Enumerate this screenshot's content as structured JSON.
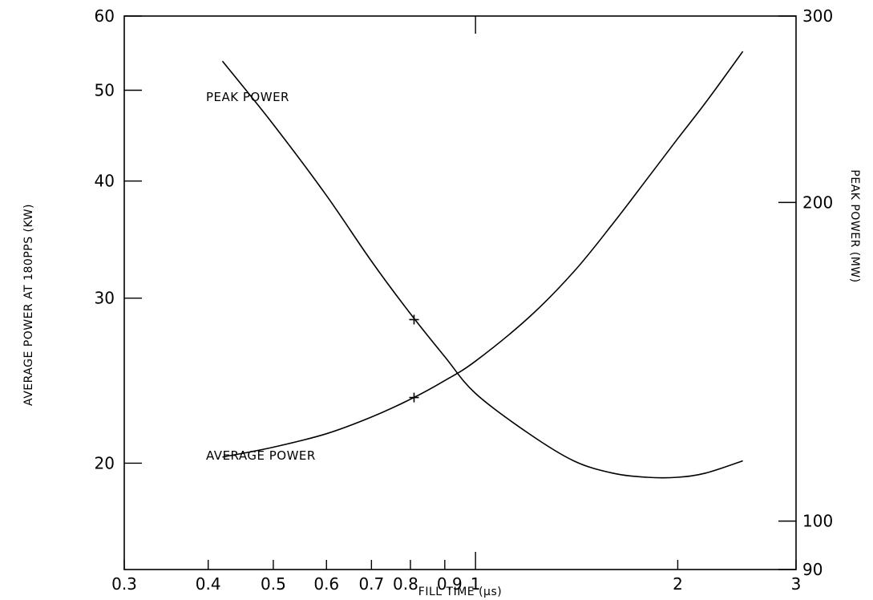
{
  "chart_data": {
    "type": "line",
    "xlabel": "FILL TIME (μs)",
    "ylabel_left": "AVERAGE POWER AT 180PPS (KW)",
    "ylabel_right": "PEAK POWER (MW)",
    "x_scale": "log",
    "y_scale": "log",
    "xlim": [
      0.3,
      3
    ],
    "ylim_left": [
      15.4,
      60
    ],
    "ylim_right": [
      90,
      300
    ],
    "x_ticks": [
      {
        "value": 0.3,
        "label": "0.3"
      },
      {
        "value": 0.4,
        "label": "0.4"
      },
      {
        "value": 0.5,
        "label": "0.5"
      },
      {
        "value": 0.6,
        "label": "0.6"
      },
      {
        "value": 0.7,
        "label": "0.7"
      },
      {
        "value": 0.8,
        "label": "0.8"
      },
      {
        "value": 0.9,
        "label": "0.9"
      },
      {
        "value": 1,
        "label": "1"
      },
      {
        "value": 2,
        "label": "2"
      },
      {
        "value": 3,
        "label": "3"
      }
    ],
    "y_left_ticks": [
      {
        "value": 20,
        "label": "20"
      },
      {
        "value": 30,
        "label": "30"
      },
      {
        "value": 40,
        "label": "40"
      },
      {
        "value": 50,
        "label": "50"
      },
      {
        "value": 60,
        "label": "60"
      }
    ],
    "y_right_ticks": [
      {
        "value": 90,
        "label": "90"
      },
      {
        "value": 100,
        "label": "100"
      },
      {
        "value": 200,
        "label": "200"
      },
      {
        "value": 300,
        "label": "300"
      }
    ],
    "grid": false,
    "series": [
      {
        "name": "PEAK POWER",
        "axis": "right",
        "x": [
          0.42,
          0.5,
          0.6,
          0.7,
          0.8,
          0.9,
          1.0,
          1.2,
          1.4,
          1.6,
          1.8,
          2.0,
          2.2,
          2.5
        ],
        "y": [
          272,
          237,
          203,
          176,
          157,
          143,
          132,
          121,
          114,
          111,
          110,
          110,
          111,
          114
        ]
      },
      {
        "name": "AVERAGE POWER",
        "axis": "left",
        "x": [
          0.42,
          0.5,
          0.6,
          0.7,
          0.8,
          0.9,
          1.0,
          1.2,
          1.4,
          1.6,
          1.8,
          2.0,
          2.2,
          2.5
        ],
        "y": [
          20.3,
          20.8,
          21.5,
          22.4,
          23.4,
          24.5,
          25.7,
          28.6,
          32.0,
          36.0,
          40.2,
          44.4,
          48.5,
          55.0
        ]
      }
    ],
    "markers": [
      {
        "x": 0.81,
        "axis": "right",
        "y": 155
      },
      {
        "x": 0.81,
        "axis": "left",
        "y": 23.5
      }
    ],
    "annotations": [
      "PEAK POWER",
      "AVERAGE POWER"
    ]
  }
}
